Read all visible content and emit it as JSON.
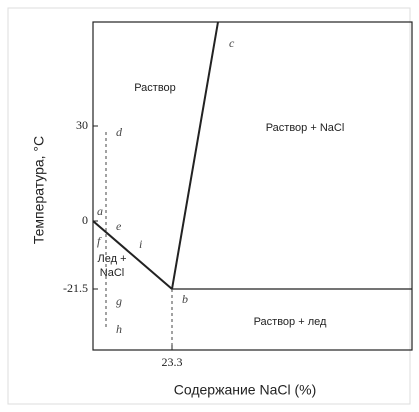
{
  "axes": {
    "y_label": "Температура, °C",
    "x_label": "Содержание NaCl (%)",
    "y_ticks": [
      "30",
      "0",
      "-21.5"
    ],
    "x_ticks": [
      "23.3"
    ]
  },
  "regions": [
    "Раствор",
    "Раствор + NaCl",
    "Раствор + лед",
    "Лед +",
    "NaCl"
  ],
  "points": [
    "c",
    "d",
    "a",
    "e",
    "f",
    "i",
    "b",
    "g",
    "h"
  ]
}
